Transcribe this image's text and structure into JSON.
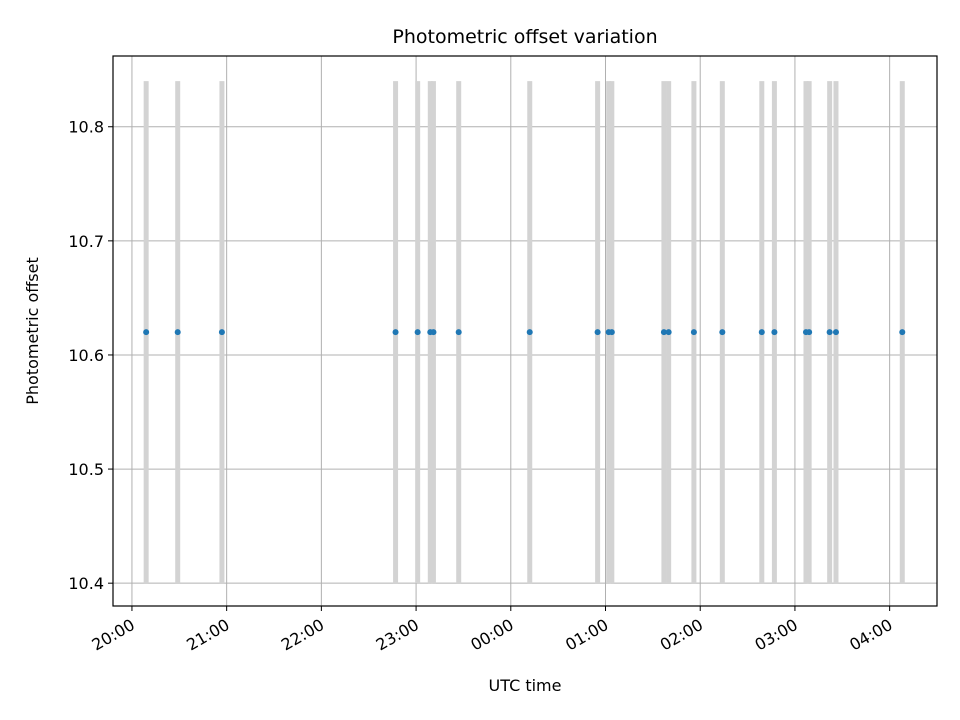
{
  "chart_data": {
    "type": "scatter",
    "title": "Photometric offset variation",
    "xlabel": "UTC time",
    "ylabel": "Photometric offset",
    "x_tick_labels": [
      "20:00",
      "21:00",
      "22:00",
      "23:00",
      "00:00",
      "01:00",
      "02:00",
      "03:00",
      "04:00"
    ],
    "x_tick_hours": [
      20,
      21,
      22,
      23,
      24,
      25,
      26,
      27,
      28
    ],
    "xlim_hours": [
      19.8,
      28.5
    ],
    "y_tick_labels": [
      "10.4",
      "10.5",
      "10.6",
      "10.7",
      "10.8"
    ],
    "y_ticks": [
      10.4,
      10.5,
      10.6,
      10.7,
      10.8
    ],
    "ylim": [
      10.38,
      10.862
    ],
    "grid": true,
    "colors": {
      "points": "#1f77b4",
      "bands": "#d3d3d3",
      "grid": "#b0b0b0"
    },
    "bands": {
      "ymin": 10.4,
      "ymax": 10.84
    },
    "points": [
      {
        "time": "20:09",
        "y": 10.62
      },
      {
        "time": "20:29",
        "y": 10.62
      },
      {
        "time": "20:57",
        "y": 10.62
      },
      {
        "time": "22:47",
        "y": 10.62
      },
      {
        "time": "23:01",
        "y": 10.62
      },
      {
        "time": "23:09",
        "y": 10.62
      },
      {
        "time": "23:11",
        "y": 10.62
      },
      {
        "time": "23:27",
        "y": 10.62
      },
      {
        "time": "00:12",
        "y": 10.62
      },
      {
        "time": "00:55",
        "y": 10.62
      },
      {
        "time": "01:02",
        "y": 10.62
      },
      {
        "time": "01:04",
        "y": 10.62
      },
      {
        "time": "01:37",
        "y": 10.62
      },
      {
        "time": "01:40",
        "y": 10.62
      },
      {
        "time": "01:56",
        "y": 10.62
      },
      {
        "time": "02:14",
        "y": 10.62
      },
      {
        "time": "02:39",
        "y": 10.62
      },
      {
        "time": "02:47",
        "y": 10.62
      },
      {
        "time": "03:07",
        "y": 10.62
      },
      {
        "time": "03:09",
        "y": 10.62
      },
      {
        "time": "03:22",
        "y": 10.62
      },
      {
        "time": "03:26",
        "y": 10.62
      },
      {
        "time": "04:08",
        "y": 10.62
      }
    ]
  }
}
